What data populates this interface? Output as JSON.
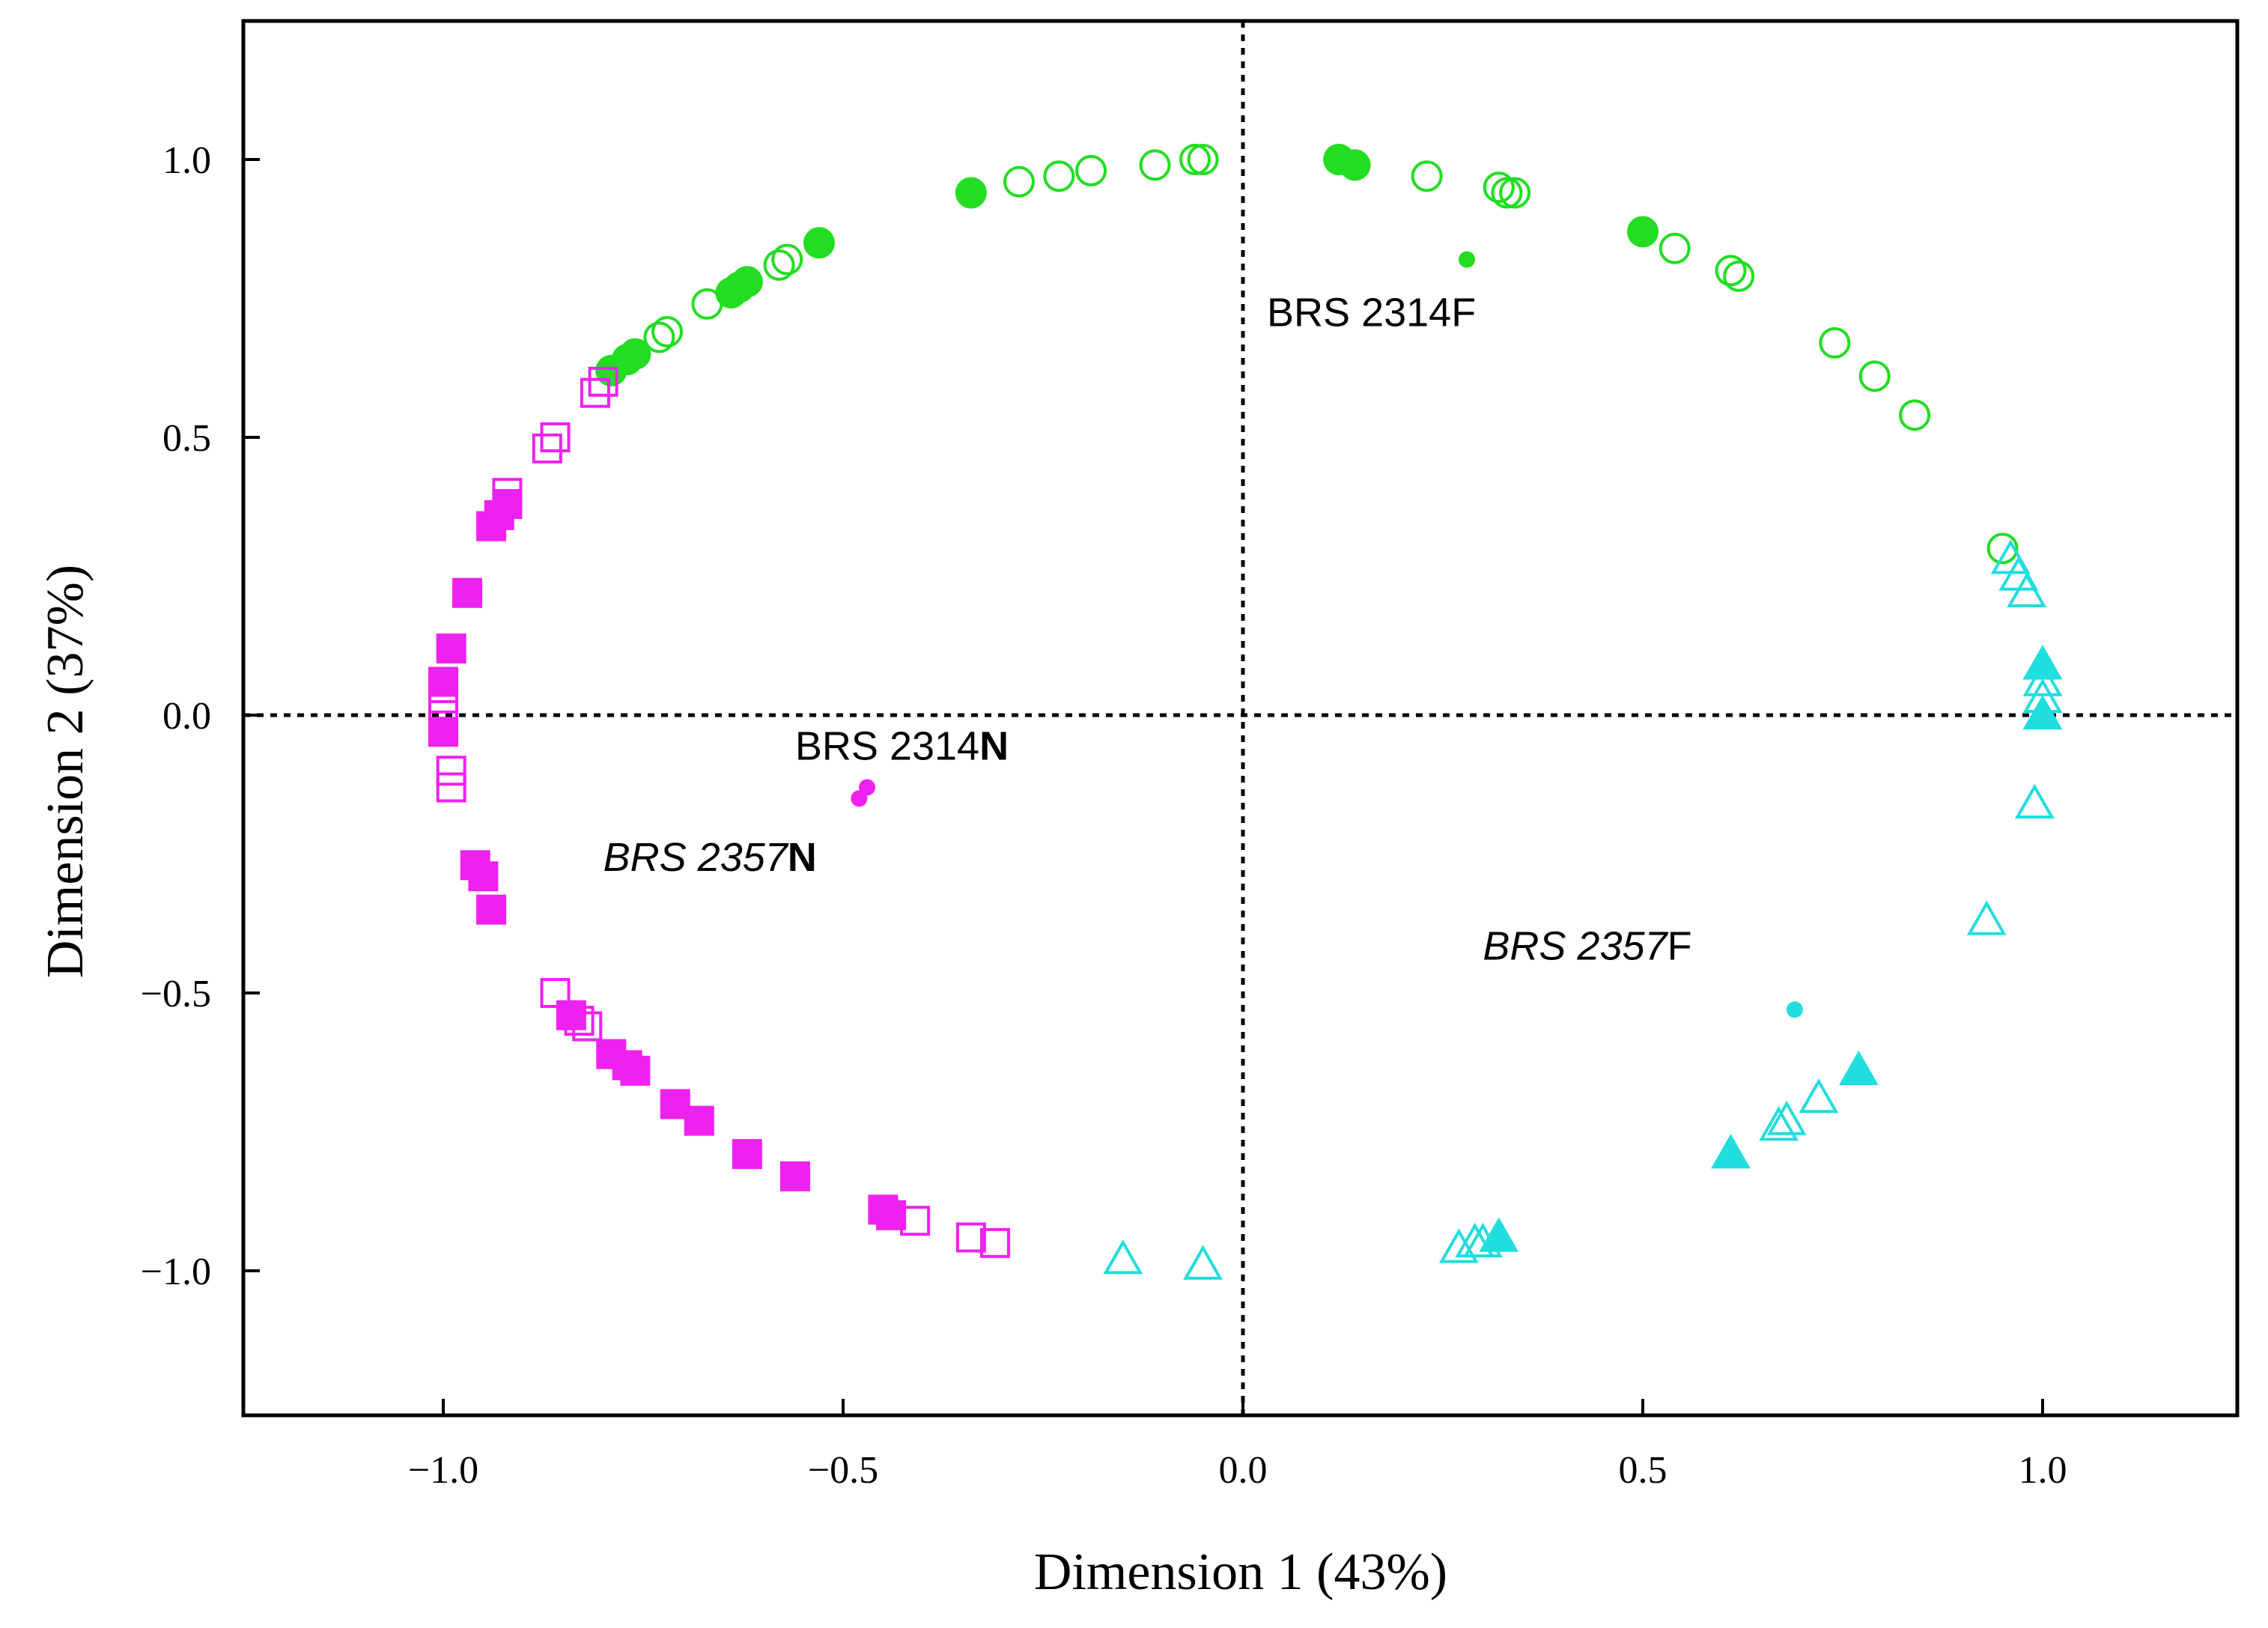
{
  "chart_data": {
    "type": "scatter",
    "title": "",
    "xlabel": "Dimension 1 (43%)",
    "ylabel": "Dimension 2 (37%)",
    "xlim": [
      -1.25,
      1.25
    ],
    "ylim": [
      -1.25,
      1.25
    ],
    "xticks": [
      -1.0,
      -0.5,
      0.0,
      0.5,
      1.0
    ],
    "yticks": [
      -1.0,
      -0.5,
      0.0,
      0.5,
      1.0
    ],
    "xtick_labels": [
      "−1.0",
      "−0.5",
      "0.0",
      "0.5",
      "1.0"
    ],
    "ytick_labels": [
      "−1.0",
      "−0.5",
      "0.0",
      "0.5",
      "1.0"
    ],
    "reference_lines": {
      "x": 0.0,
      "y": 0.0,
      "style": "dotted"
    },
    "colors": {
      "green": "#22dd22",
      "magenta": "#ee22ee",
      "cyan": "#22dddd",
      "axis": "#000000"
    },
    "series": [
      {
        "name": "green-open-circles",
        "marker": "circle",
        "filled": false,
        "color": "#22dd22",
        "points": [
          [
            -0.79,
            0.62
          ],
          [
            -0.76,
            0.65
          ],
          [
            -0.73,
            0.68
          ],
          [
            -0.72,
            0.69
          ],
          [
            -0.67,
            0.74
          ],
          [
            -0.58,
            0.81
          ],
          [
            -0.57,
            0.82
          ],
          [
            -0.28,
            0.96
          ],
          [
            -0.23,
            0.97
          ],
          [
            -0.19,
            0.98
          ],
          [
            -0.11,
            0.99
          ],
          [
            -0.06,
            1.0
          ],
          [
            -0.05,
            1.0
          ],
          [
            0.23,
            0.97
          ],
          [
            0.32,
            0.95
          ],
          [
            0.33,
            0.94
          ],
          [
            0.34,
            0.94
          ],
          [
            0.54,
            0.84
          ],
          [
            0.61,
            0.8
          ],
          [
            0.62,
            0.79
          ],
          [
            0.74,
            0.67
          ],
          [
            0.79,
            0.61
          ],
          [
            0.84,
            0.54
          ],
          [
            0.95,
            0.3
          ]
        ]
      },
      {
        "name": "green-filled-circles",
        "marker": "circle",
        "filled": true,
        "color": "#22dd22",
        "points": [
          [
            -0.79,
            0.62
          ],
          [
            -0.77,
            0.64
          ],
          [
            -0.76,
            0.65
          ],
          [
            -0.64,
            0.76
          ],
          [
            -0.63,
            0.77
          ],
          [
            -0.62,
            0.78
          ],
          [
            -0.53,
            0.85
          ],
          [
            -0.34,
            0.94
          ],
          [
            0.12,
            1.0
          ],
          [
            0.14,
            0.99
          ],
          [
            0.5,
            0.87
          ]
        ]
      },
      {
        "name": "magenta-open-squares",
        "marker": "square",
        "filled": false,
        "color": "#ee22ee",
        "points": [
          [
            -0.81,
            0.58
          ],
          [
            -0.8,
            0.6
          ],
          [
            -0.87,
            0.48
          ],
          [
            -0.86,
            0.5
          ],
          [
            -0.92,
            0.4
          ],
          [
            -1.0,
            0.03
          ],
          [
            -1.0,
            0.0
          ],
          [
            -0.99,
            -0.1
          ],
          [
            -0.99,
            -0.13
          ],
          [
            -0.86,
            -0.5
          ],
          [
            -0.83,
            -0.55
          ],
          [
            -0.82,
            -0.56
          ],
          [
            -0.41,
            -0.91
          ],
          [
            -0.34,
            -0.94
          ],
          [
            -0.31,
            -0.95
          ]
        ]
      },
      {
        "name": "magenta-filled-squares",
        "marker": "square",
        "filled": true,
        "color": "#ee22ee",
        "points": [
          [
            -0.94,
            0.34
          ],
          [
            -0.93,
            0.36
          ],
          [
            -0.92,
            0.38
          ],
          [
            -0.97,
            0.22
          ],
          [
            -0.99,
            0.12
          ],
          [
            -1.0,
            0.06
          ],
          [
            -1.0,
            -0.03
          ],
          [
            -0.96,
            -0.27
          ],
          [
            -0.95,
            -0.29
          ],
          [
            -0.94,
            -0.35
          ],
          [
            -0.84,
            -0.54
          ],
          [
            -0.79,
            -0.61
          ],
          [
            -0.77,
            -0.63
          ],
          [
            -0.76,
            -0.64
          ],
          [
            -0.71,
            -0.7
          ],
          [
            -0.68,
            -0.73
          ],
          [
            -0.62,
            -0.79
          ],
          [
            -0.56,
            -0.83
          ],
          [
            -0.45,
            -0.89
          ],
          [
            -0.44,
            -0.9
          ]
        ]
      },
      {
        "name": "cyan-open-triangles",
        "marker": "triangle",
        "filled": false,
        "color": "#22dddd",
        "points": [
          [
            0.96,
            0.28
          ],
          [
            0.97,
            0.25
          ],
          [
            0.98,
            0.22
          ],
          [
            1.0,
            0.09
          ],
          [
            1.0,
            0.06
          ],
          [
            1.0,
            0.03
          ],
          [
            0.99,
            -0.16
          ],
          [
            0.93,
            -0.37
          ],
          [
            0.72,
            -0.69
          ],
          [
            0.68,
            -0.73
          ],
          [
            0.67,
            -0.74
          ],
          [
            0.27,
            -0.96
          ],
          [
            0.29,
            -0.95
          ],
          [
            0.3,
            -0.95
          ],
          [
            -0.15,
            -0.98
          ],
          [
            -0.05,
            -0.99
          ]
        ]
      },
      {
        "name": "cyan-filled-triangles",
        "marker": "triangle",
        "filled": true,
        "color": "#22dddd",
        "points": [
          [
            1.0,
            0.09
          ],
          [
            1.0,
            0.0
          ],
          [
            0.77,
            -0.64
          ],
          [
            0.61,
            -0.79
          ],
          [
            0.32,
            -0.94
          ]
        ]
      },
      {
        "name": "group-centroids",
        "marker": "dot",
        "filled": true,
        "points": [
          [
            0.28,
            0.82,
            "#22dd22"
          ],
          [
            -0.48,
            -0.15,
            "#ee22ee"
          ],
          [
            -0.47,
            -0.13,
            "#ee22ee"
          ],
          [
            0.69,
            -0.53,
            "#22dddd"
          ]
        ]
      }
    ],
    "annotations": [
      {
        "name": "label-brs-2314f",
        "x": 0.03,
        "y": 0.7,
        "parts": [
          {
            "text": "BRS 2314F",
            "style": "normal"
          }
        ]
      },
      {
        "name": "label-brs-2314n",
        "x": -0.56,
        "y": -0.08,
        "parts": [
          {
            "text": "BRS 2314",
            "style": "normal"
          },
          {
            "text": "N",
            "style": "bold"
          }
        ]
      },
      {
        "name": "label-brs-2357n",
        "x": -0.8,
        "y": -0.28,
        "parts": [
          {
            "text": "BRS 2357",
            "style": "italic"
          },
          {
            "text": "N",
            "style": "bold"
          }
        ]
      },
      {
        "name": "label-brs-2357f",
        "x": 0.3,
        "y": -0.44,
        "parts": [
          {
            "text": "BRS 2357",
            "style": "italic"
          },
          {
            "text": "F",
            "style": "normal"
          }
        ]
      }
    ]
  }
}
